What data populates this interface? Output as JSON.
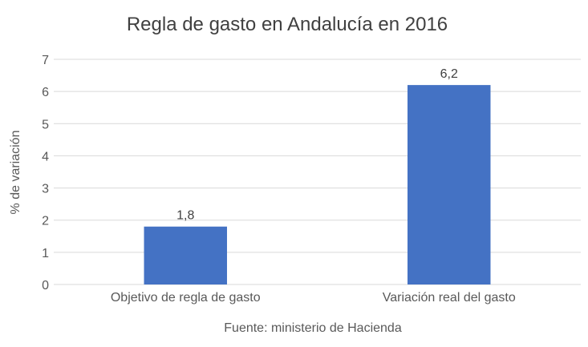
{
  "chart_data": {
    "type": "bar",
    "title": "Regla de gasto en Andalucía en 2016",
    "ylabel": "% de variación",
    "xlabel": "Fuente: ministerio de Hacienda",
    "categories": [
      "Objetivo de regla de gasto",
      "Variación real del gasto"
    ],
    "values": [
      1.8,
      6.2
    ],
    "value_labels": [
      "1,8",
      "6,2"
    ],
    "ylim": [
      0,
      7
    ],
    "yticks": [
      "0",
      "1",
      "2",
      "3",
      "4",
      "5",
      "6",
      "7"
    ],
    "grid": true,
    "legend": "none"
  },
  "colors": {
    "bar": "#4472c4",
    "grid": "#d9d9d9",
    "text": "#595959",
    "title": "#404040"
  }
}
